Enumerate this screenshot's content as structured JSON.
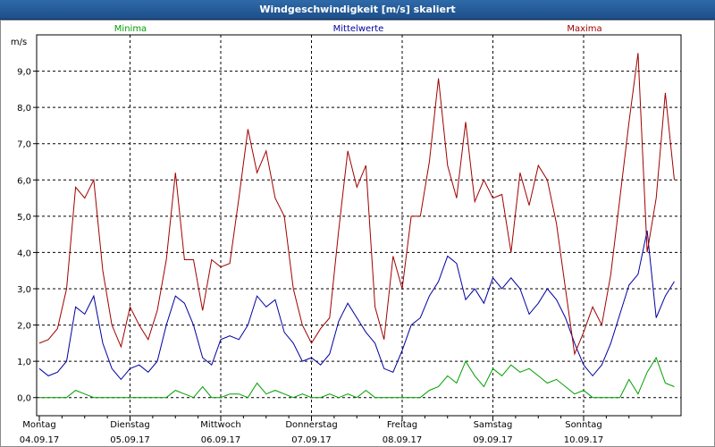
{
  "window": {
    "title": "Windgeschwindigkeit [m/s] skaliert"
  },
  "chart_data": {
    "type": "line",
    "title": "Windgeschwindigkeit [m/s] skaliert",
    "ylabel": "m/s",
    "xlabel": "",
    "ylim": [
      -0.5,
      10.0
    ],
    "xlim": [
      0,
      7
    ],
    "grid": true,
    "yticks": [
      {
        "value": 0,
        "label": "0,0"
      },
      {
        "value": 1,
        "label": "1,0"
      },
      {
        "value": 2,
        "label": "2,0"
      },
      {
        "value": 3,
        "label": "3,0"
      },
      {
        "value": 4,
        "label": "4,0"
      },
      {
        "value": 5,
        "label": "5,0"
      },
      {
        "value": 6,
        "label": "6,0"
      },
      {
        "value": 7,
        "label": "7,0"
      },
      {
        "value": 8,
        "label": "8,0"
      },
      {
        "value": 9,
        "label": "9,0"
      }
    ],
    "xticks": [
      {
        "day": "Montag",
        "date": "04.09.17"
      },
      {
        "day": "Dienstag",
        "date": "05.09.17"
      },
      {
        "day": "Mittwoch",
        "date": "06.09.17"
      },
      {
        "day": "Donnerstag",
        "date": "07.09.17"
      },
      {
        "day": "Freitag",
        "date": "08.09.17"
      },
      {
        "day": "Samstag",
        "date": "09.09.17"
      },
      {
        "day": "Sonntag",
        "date": "10.09.17"
      }
    ],
    "series": [
      {
        "name": "Minima",
        "color": "#00a000",
        "x": [
          0,
          0.1,
          0.2,
          0.3,
          0.4,
          0.5,
          0.6,
          0.7,
          0.8,
          0.9,
          1.0,
          1.1,
          1.2,
          1.3,
          1.4,
          1.5,
          1.6,
          1.7,
          1.8,
          1.9,
          2.0,
          2.1,
          2.2,
          2.3,
          2.4,
          2.5,
          2.6,
          2.7,
          2.8,
          2.9,
          3.0,
          3.1,
          3.2,
          3.3,
          3.4,
          3.5,
          3.6,
          3.7,
          3.8,
          3.9,
          4.0,
          4.1,
          4.2,
          4.3,
          4.4,
          4.5,
          4.6,
          4.7,
          4.8,
          4.9,
          5.0,
          5.1,
          5.2,
          5.3,
          5.4,
          5.5,
          5.6,
          5.7,
          5.8,
          5.9,
          6.0,
          6.1,
          6.2,
          6.3,
          6.4,
          6.5,
          6.6,
          6.7,
          6.8,
          6.9,
          7.0
        ],
        "values": [
          0,
          0,
          0,
          0,
          0.2,
          0.1,
          0,
          0,
          0,
          0,
          0,
          0,
          0,
          0,
          0,
          0.2,
          0.1,
          0,
          0.3,
          0,
          0,
          0.1,
          0.1,
          0,
          0.4,
          0.1,
          0.2,
          0.1,
          0,
          0.1,
          0,
          0,
          0.1,
          0,
          0.1,
          0,
          0.2,
          0,
          0,
          0,
          0,
          0,
          0,
          0.2,
          0.3,
          0.6,
          0.4,
          1.0,
          0.6,
          0.3,
          0.8,
          0.6,
          0.9,
          0.7,
          0.8,
          0.6,
          0.4,
          0.5,
          0.3,
          0.1,
          0.2,
          0,
          0,
          0,
          0,
          0.5,
          0.1,
          0.7,
          1.1,
          0.4,
          0.3
        ]
      },
      {
        "name": "Mittelwerte",
        "color": "#0000a0",
        "x": [
          0,
          0.1,
          0.2,
          0.3,
          0.4,
          0.5,
          0.6,
          0.7,
          0.8,
          0.9,
          1.0,
          1.1,
          1.2,
          1.3,
          1.4,
          1.5,
          1.6,
          1.7,
          1.8,
          1.9,
          2.0,
          2.1,
          2.2,
          2.3,
          2.4,
          2.5,
          2.6,
          2.7,
          2.8,
          2.9,
          3.0,
          3.1,
          3.2,
          3.3,
          3.4,
          3.5,
          3.6,
          3.7,
          3.8,
          3.9,
          4.0,
          4.1,
          4.2,
          4.3,
          4.4,
          4.5,
          4.6,
          4.7,
          4.8,
          4.9,
          5.0,
          5.1,
          5.2,
          5.3,
          5.4,
          5.5,
          5.6,
          5.7,
          5.8,
          5.9,
          6.0,
          6.1,
          6.2,
          6.3,
          6.4,
          6.5,
          6.6,
          6.7,
          6.8,
          6.9,
          7.0
        ],
        "values": [
          0.8,
          0.6,
          0.7,
          1.0,
          2.5,
          2.3,
          2.8,
          1.5,
          0.8,
          0.5,
          0.8,
          0.9,
          0.7,
          1.0,
          2.0,
          2.8,
          2.6,
          2.0,
          1.1,
          0.9,
          1.6,
          1.7,
          1.6,
          2.0,
          2.8,
          2.5,
          2.7,
          1.8,
          1.5,
          1.0,
          1.1,
          0.9,
          1.2,
          2.1,
          2.6,
          2.2,
          1.8,
          1.5,
          0.8,
          0.7,
          1.3,
          2.0,
          2.2,
          2.8,
          3.2,
          3.9,
          3.7,
          2.7,
          3.0,
          2.6,
          3.3,
          3.0,
          3.3,
          3.0,
          2.3,
          2.6,
          3.0,
          2.7,
          2.2,
          1.5,
          0.9,
          0.6,
          0.9,
          1.5,
          2.3,
          3.1,
          3.4,
          4.6,
          2.2,
          2.8,
          3.2
        ]
      },
      {
        "name": "Maxima",
        "color": "#a00000",
        "x": [
          0,
          0.1,
          0.2,
          0.3,
          0.4,
          0.5,
          0.6,
          0.7,
          0.8,
          0.9,
          1.0,
          1.1,
          1.2,
          1.3,
          1.4,
          1.5,
          1.6,
          1.7,
          1.8,
          1.9,
          2.0,
          2.1,
          2.2,
          2.3,
          2.4,
          2.5,
          2.6,
          2.7,
          2.8,
          2.9,
          3.0,
          3.1,
          3.2,
          3.3,
          3.4,
          3.5,
          3.6,
          3.7,
          3.8,
          3.9,
          4.0,
          4.1,
          4.2,
          4.3,
          4.4,
          4.5,
          4.6,
          4.7,
          4.8,
          4.9,
          5.0,
          5.1,
          5.2,
          5.3,
          5.4,
          5.5,
          5.6,
          5.7,
          5.8,
          5.9,
          6.0,
          6.1,
          6.2,
          6.3,
          6.4,
          6.5,
          6.6,
          6.7,
          6.8,
          6.9,
          7.0
        ],
        "values": [
          1.5,
          1.6,
          1.9,
          3.0,
          5.8,
          5.5,
          6.0,
          3.5,
          2.0,
          1.4,
          2.5,
          2.0,
          1.6,
          2.4,
          3.8,
          6.2,
          3.8,
          3.8,
          2.4,
          3.8,
          3.6,
          3.7,
          5.5,
          7.4,
          6.2,
          6.8,
          5.5,
          5.0,
          3.0,
          2.0,
          1.5,
          1.9,
          2.2,
          4.6,
          6.8,
          5.8,
          6.4,
          2.5,
          1.6,
          3.9,
          3.0,
          5.0,
          5.0,
          6.5,
          8.8,
          6.4,
          5.5,
          7.6,
          5.4,
          6.0,
          5.5,
          5.6,
          4.0,
          6.2,
          5.3,
          6.4,
          6.0,
          4.8,
          3.0,
          1.2,
          1.8,
          2.5,
          2.0,
          3.4,
          5.5,
          7.6,
          9.5,
          4.0,
          5.5,
          8.4,
          6.0
        ]
      }
    ]
  }
}
